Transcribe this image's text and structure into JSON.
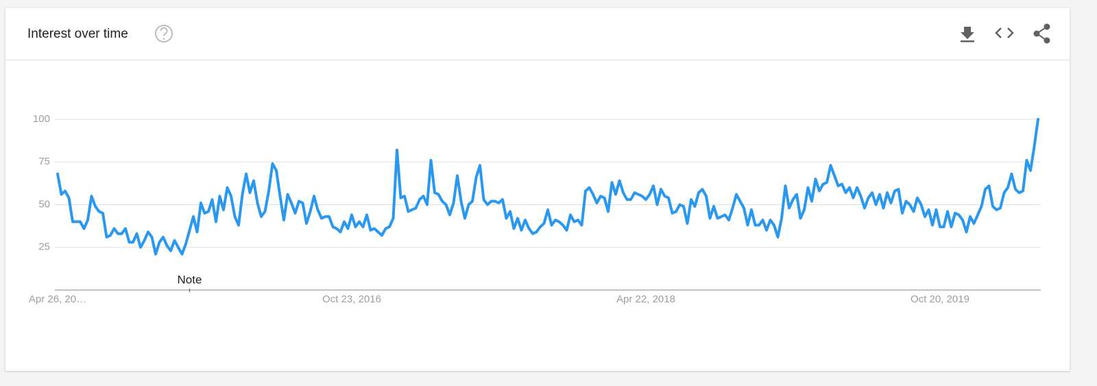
{
  "chart_data": {
    "type": "line",
    "title": "Interest over time",
    "categories": [
      "Apr 26, 20…",
      null,
      null,
      null,
      null,
      null,
      null,
      null,
      null,
      null,
      null,
      null,
      null,
      null,
      null,
      null,
      null,
      null,
      null,
      null,
      null,
      null,
      null,
      null,
      null,
      null,
      null,
      null,
      null,
      null,
      null,
      null,
      null,
      null,
      null,
      null,
      null,
      null,
      null,
      null,
      null,
      null,
      null,
      null,
      null,
      null,
      null,
      null,
      null,
      null,
      null,
      null,
      null,
      null,
      null,
      null,
      null,
      null,
      null,
      null,
      null,
      null,
      null,
      null,
      null,
      null,
      null,
      null,
      null,
      null,
      null,
      null,
      null,
      null,
      null,
      null,
      null,
      null,
      "Oct 23, 2016",
      null,
      null,
      null,
      null,
      null,
      null,
      null,
      null,
      null,
      null,
      null,
      null,
      null,
      null,
      null,
      null,
      null,
      null,
      null,
      null,
      null,
      null,
      null,
      null,
      null,
      null,
      null,
      null,
      null,
      null,
      null,
      null,
      null,
      null,
      null,
      null,
      null,
      null,
      null,
      null,
      null,
      null,
      null,
      null,
      null,
      null,
      null,
      null,
      null,
      null,
      null,
      null,
      null,
      null,
      null,
      null,
      null,
      null,
      null,
      null,
      null,
      null,
      null,
      null,
      null,
      null,
      null,
      null,
      null,
      null,
      null,
      null,
      null,
      null,
      null,
      null,
      null,
      "Apr 22, 2018",
      null,
      null,
      null,
      null,
      null,
      null,
      null,
      null,
      null,
      null,
      null,
      null,
      null,
      null,
      null,
      null,
      null,
      null,
      null,
      null,
      null,
      null,
      null,
      null,
      null,
      null,
      null,
      null,
      null,
      null,
      null,
      null,
      null,
      null,
      null,
      null,
      null,
      null,
      null,
      null,
      null,
      null,
      null,
      null,
      null,
      null,
      null,
      null,
      null,
      null,
      null,
      null,
      null,
      null,
      null,
      null,
      null,
      null,
      null,
      null,
      null,
      null,
      null,
      null,
      null,
      null,
      null,
      null,
      null,
      null,
      null,
      null,
      null,
      null,
      null,
      null,
      null,
      "Oct 20, 2019",
      null,
      null,
      null,
      null,
      null,
      null,
      null,
      null,
      null,
      null,
      null,
      null,
      null,
      null,
      null,
      null,
      null,
      null,
      null,
      null,
      null,
      null,
      null,
      null,
      null,
      null
    ],
    "series": [
      {
        "color": "#2b98f0",
        "values": [
          68,
          56,
          58,
          54,
          40,
          40,
          40,
          36,
          41,
          55,
          49,
          46,
          45,
          31,
          32,
          36,
          33,
          33,
          36,
          28,
          28,
          33,
          25,
          29,
          34,
          31,
          21,
          28,
          31,
          26,
          23,
          29,
          25,
          21,
          27,
          35,
          43,
          34,
          51,
          45,
          46,
          53,
          40,
          55,
          47,
          60,
          55,
          43,
          38,
          56,
          68,
          57,
          64,
          51,
          43,
          46,
          58,
          74,
          70,
          55,
          41,
          56,
          51,
          45,
          52,
          51,
          39,
          46,
          55,
          47,
          42,
          43,
          43,
          37,
          36,
          34,
          40,
          36,
          44,
          37,
          40,
          37,
          44,
          35,
          36,
          34,
          32,
          36,
          37,
          42,
          82,
          54,
          55,
          46,
          47,
          48,
          53,
          55,
          50,
          76,
          57,
          56,
          52,
          50,
          44,
          51,
          67,
          52,
          42,
          50,
          52,
          66,
          73,
          53,
          50,
          52,
          52,
          51,
          53,
          42,
          46,
          36,
          42,
          35,
          41,
          36,
          33,
          34,
          37,
          39,
          47,
          38,
          41,
          40,
          38,
          35,
          44,
          40,
          41,
          38,
          58,
          60,
          56,
          51,
          55,
          54,
          46,
          63,
          56,
          64,
          57,
          53,
          53,
          57,
          56,
          55,
          53,
          56,
          61,
          50,
          59,
          55,
          54,
          45,
          46,
          50,
          49,
          39,
          53,
          49,
          57,
          59,
          55,
          42,
          49,
          42,
          43,
          44,
          41,
          48,
          56,
          52,
          48,
          38,
          47,
          38,
          38,
          41,
          35,
          41,
          38,
          31,
          42,
          61,
          48,
          53,
          56,
          42,
          47,
          60,
          52,
          65,
          58,
          62,
          63,
          73,
          67,
          61,
          62,
          57,
          60,
          54,
          60,
          55,
          48,
          54,
          57,
          50,
          56,
          48,
          57,
          51,
          58,
          59,
          45,
          52,
          50,
          46,
          54,
          50,
          43,
          47,
          38,
          47,
          37,
          37,
          46,
          37,
          45,
          44,
          41,
          34,
          43,
          39,
          44,
          49,
          59,
          61,
          49,
          47,
          48,
          57,
          60,
          68,
          59,
          57,
          58,
          76,
          70,
          84,
          100
        ]
      }
    ],
    "ylim": [
      0,
      100
    ],
    "yticks": [
      25,
      50,
      75,
      100
    ],
    "grid": true,
    "annotations": [
      {
        "text": "Note",
        "x": 35
      }
    ]
  }
}
